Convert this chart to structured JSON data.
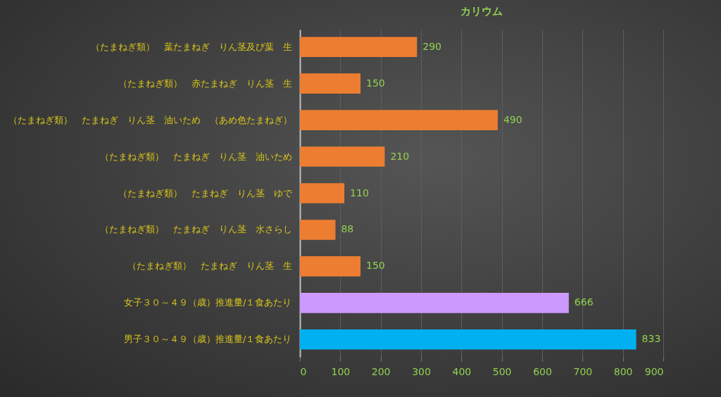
{
  "chart_data": {
    "type": "bar",
    "orientation": "horizontal",
    "title": "カリウム",
    "categories": [
      "（たまねぎ類）　葉たまねぎ　りん茎及び葉　生",
      "（たまねぎ類）　赤たまねぎ　りん茎　生",
      "（たまねぎ類）　たまねぎ　りん茎　油いため　（あめ色たまねぎ）",
      "（たまねぎ類）　たまねぎ　りん茎　油いため",
      "（たまねぎ類）　たまねぎ　りん茎　ゆで",
      "（たまねぎ類）　たまねぎ　りん茎　水さらし",
      "（たまねぎ類）　たまねぎ　りん茎　生",
      "女子３０～４９（歳）推進量/１食あたり",
      "男子３０～４９（歳）推進量/１食あたり"
    ],
    "values": [
      290,
      150,
      490,
      210,
      110,
      88,
      150,
      666,
      833
    ],
    "colors": [
      "#ed7d31",
      "#ed7d31",
      "#ed7d31",
      "#ed7d31",
      "#ed7d31",
      "#ed7d31",
      "#ed7d31",
      "#cc99ff",
      "#00b0f0"
    ],
    "xlim": [
      0,
      900
    ],
    "xticks": [
      0,
      100,
      200,
      300,
      400,
      500,
      600,
      700,
      800,
      900
    ],
    "grid": "x",
    "data_labels": true
  }
}
